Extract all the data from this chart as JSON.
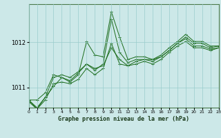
{
  "title": "Graphe pression niveau de la mer (hPa)",
  "bg_color": "#cce8e8",
  "grid_color": "#99cccc",
  "line_color": "#1a6b1a",
  "x_min": 0,
  "x_max": 23,
  "y_min": 1010.55,
  "y_max": 1012.85,
  "y_ticks": [
    1011,
    1012
  ],
  "x_ticks": [
    0,
    1,
    2,
    3,
    4,
    5,
    6,
    7,
    8,
    9,
    10,
    11,
    12,
    13,
    14,
    15,
    16,
    17,
    18,
    19,
    20,
    21,
    22,
    23
  ],
  "series": [
    [
      1010.72,
      1010.72,
      1010.88,
      1011.28,
      1011.22,
      1011.15,
      1011.32,
      1011.52,
      1011.38,
      1011.52,
      1012.52,
      1011.78,
      1011.55,
      1011.62,
      1011.62,
      1011.58,
      1011.68,
      1011.82,
      1011.98,
      1012.08,
      1011.92,
      1011.92,
      1011.85,
      1011.88
    ],
    [
      1010.72,
      1010.52,
      1010.78,
      1011.02,
      1011.22,
      1011.12,
      1011.28,
      1012.02,
      1011.72,
      1011.68,
      1012.68,
      1012.12,
      1011.62,
      1011.68,
      1011.68,
      1011.62,
      1011.68,
      1011.82,
      1011.98,
      1012.12,
      1011.98,
      1011.98,
      1011.88,
      1011.92
    ],
    [
      1010.72,
      1010.55,
      1010.78,
      1011.22,
      1011.28,
      1011.22,
      1011.35,
      1011.52,
      1011.42,
      1011.48,
      1011.88,
      1011.62,
      1011.48,
      1011.58,
      1011.62,
      1011.62,
      1011.72,
      1011.88,
      1012.02,
      1012.18,
      1012.02,
      1012.02,
      1011.92,
      1011.92
    ],
    [
      1010.68,
      1010.52,
      1010.72,
      1011.08,
      1011.12,
      1011.08,
      1011.18,
      1011.42,
      1011.28,
      1011.42,
      1011.98,
      1011.52,
      1011.48,
      1011.52,
      1011.58,
      1011.52,
      1011.62,
      1011.78,
      1011.92,
      1012.02,
      1011.88,
      1011.88,
      1011.82,
      1011.88
    ]
  ]
}
